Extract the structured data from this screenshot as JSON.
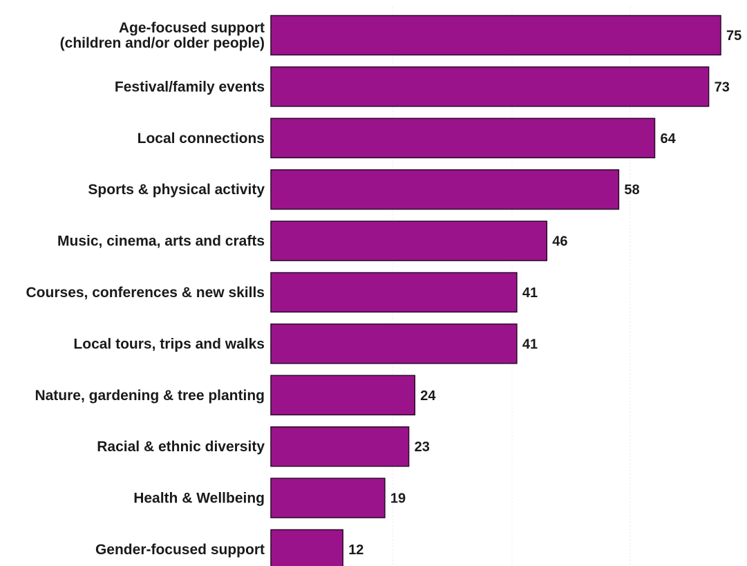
{
  "chart_data": {
    "type": "bar",
    "orientation": "horizontal",
    "categories": [
      [
        "Age-focused support",
        "(children and/or older people)"
      ],
      [
        "Festival/family events"
      ],
      [
        "Local connections"
      ],
      [
        "Sports & physical activity"
      ],
      [
        "Music, cinema, arts and crafts"
      ],
      [
        "Courses, conferences & new skills"
      ],
      [
        "Local tours, trips and walks"
      ],
      [
        "Nature, gardening & tree planting"
      ],
      [
        "Racial & ethnic diversity"
      ],
      [
        "Health & Wellbeing"
      ],
      [
        "Gender-focused support"
      ]
    ],
    "values": [
      75,
      73,
      64,
      58,
      46,
      41,
      41,
      24,
      23,
      19,
      12
    ],
    "bar_color": "#9b138b",
    "bar_edge_color": "#2a0a2a",
    "xlim": [
      0,
      75
    ],
    "grid": "vertical-faint",
    "data_labels": true
  }
}
